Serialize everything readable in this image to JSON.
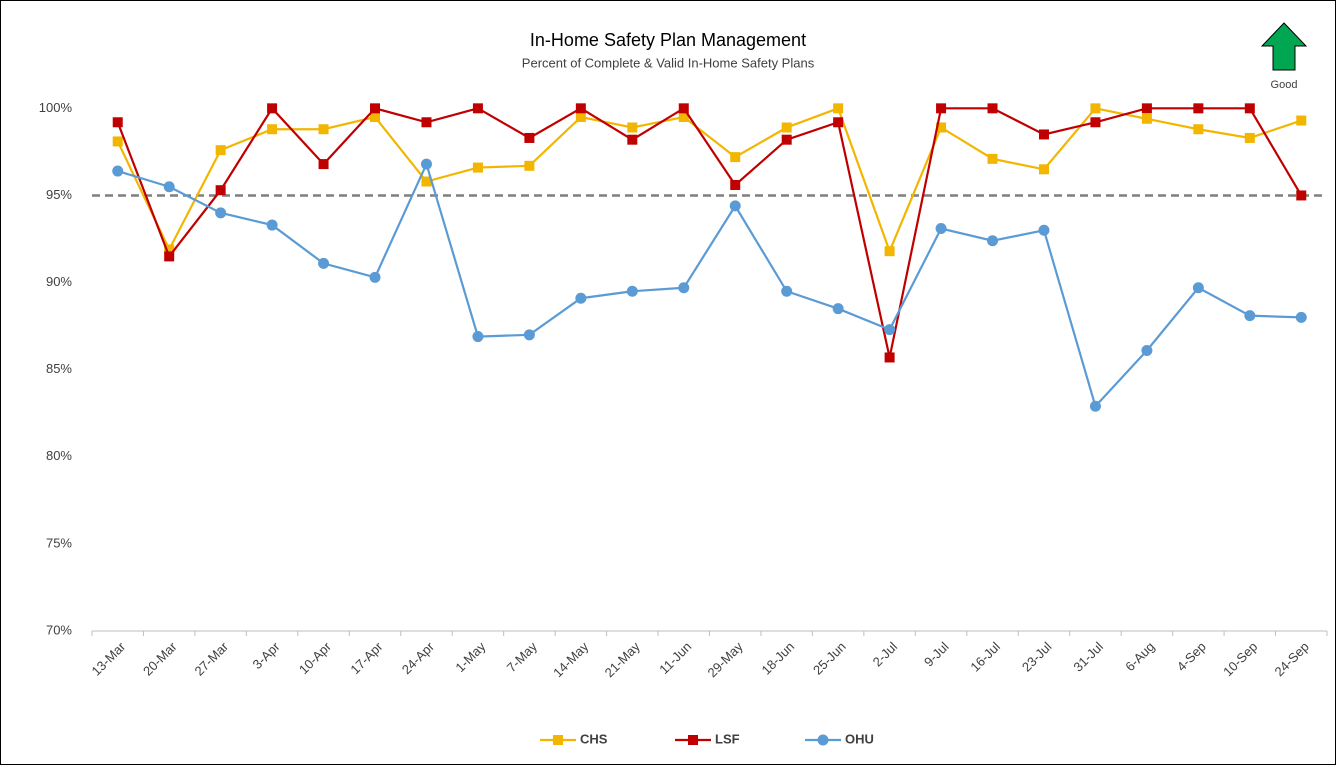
{
  "chart_data": {
    "type": "line",
    "title": "In-Home Safety Plan Management",
    "subtitle": "Percent of Complete & Valid In-Home Safety Plans",
    "annotation": "Good",
    "categories": [
      "13-Mar",
      "20-Mar",
      "27-Mar",
      "3-Apr",
      "10-Apr",
      "17-Apr",
      "24-Apr",
      "1-May",
      "7-May",
      "14-May",
      "21-May",
      "11-Jun",
      "29-May",
      "18-Jun",
      "25-Jun",
      "2-Jul",
      "9-Jul",
      "16-Jul",
      "23-Jul",
      "31-Jul",
      "6-Aug",
      "4-Sep",
      "10-Sep",
      "24-Sep"
    ],
    "series": [
      {
        "name": "CHS",
        "color": "#f2b600",
        "marker": "square",
        "values": [
          98.1,
          91.9,
          97.6,
          98.8,
          98.8,
          99.5,
          95.8,
          96.6,
          96.7,
          99.5,
          98.9,
          99.5,
          97.2,
          98.9,
          100,
          91.8,
          98.9,
          97.1,
          96.5,
          100,
          99.4,
          98.8,
          98.3,
          99.3
        ]
      },
      {
        "name": "LSF",
        "color": "#c00000",
        "marker": "square",
        "values": [
          99.2,
          91.5,
          95.3,
          100,
          96.8,
          100,
          99.2,
          100,
          98.3,
          100,
          98.2,
          100,
          95.6,
          98.2,
          99.2,
          85.7,
          100,
          100,
          98.5,
          99.2,
          100,
          100,
          100,
          95
        ]
      },
      {
        "name": "OHU",
        "color": "#5b9bd5",
        "marker": "circle",
        "values": [
          96.4,
          95.5,
          94.0,
          93.3,
          91.1,
          90.3,
          96.8,
          86.9,
          87.0,
          89.1,
          89.5,
          89.7,
          94.4,
          89.5,
          88.5,
          87.3,
          93.1,
          92.4,
          93.0,
          82.9,
          86.1,
          89.7,
          88.1,
          88.0
        ]
      }
    ],
    "threshold": 95,
    "ylim": [
      70,
      102.2
    ],
    "yticks": [
      {
        "value": 70,
        "label": "70%"
      },
      {
        "value": 75,
        "label": "75%"
      },
      {
        "value": 80,
        "label": "80%"
      },
      {
        "value": 85,
        "label": "85%"
      },
      {
        "value": 90,
        "label": "90%"
      },
      {
        "value": 95,
        "label": "95%"
      },
      {
        "value": 100,
        "label": "100%"
      }
    ],
    "grid": false,
    "legend": "bottom"
  }
}
